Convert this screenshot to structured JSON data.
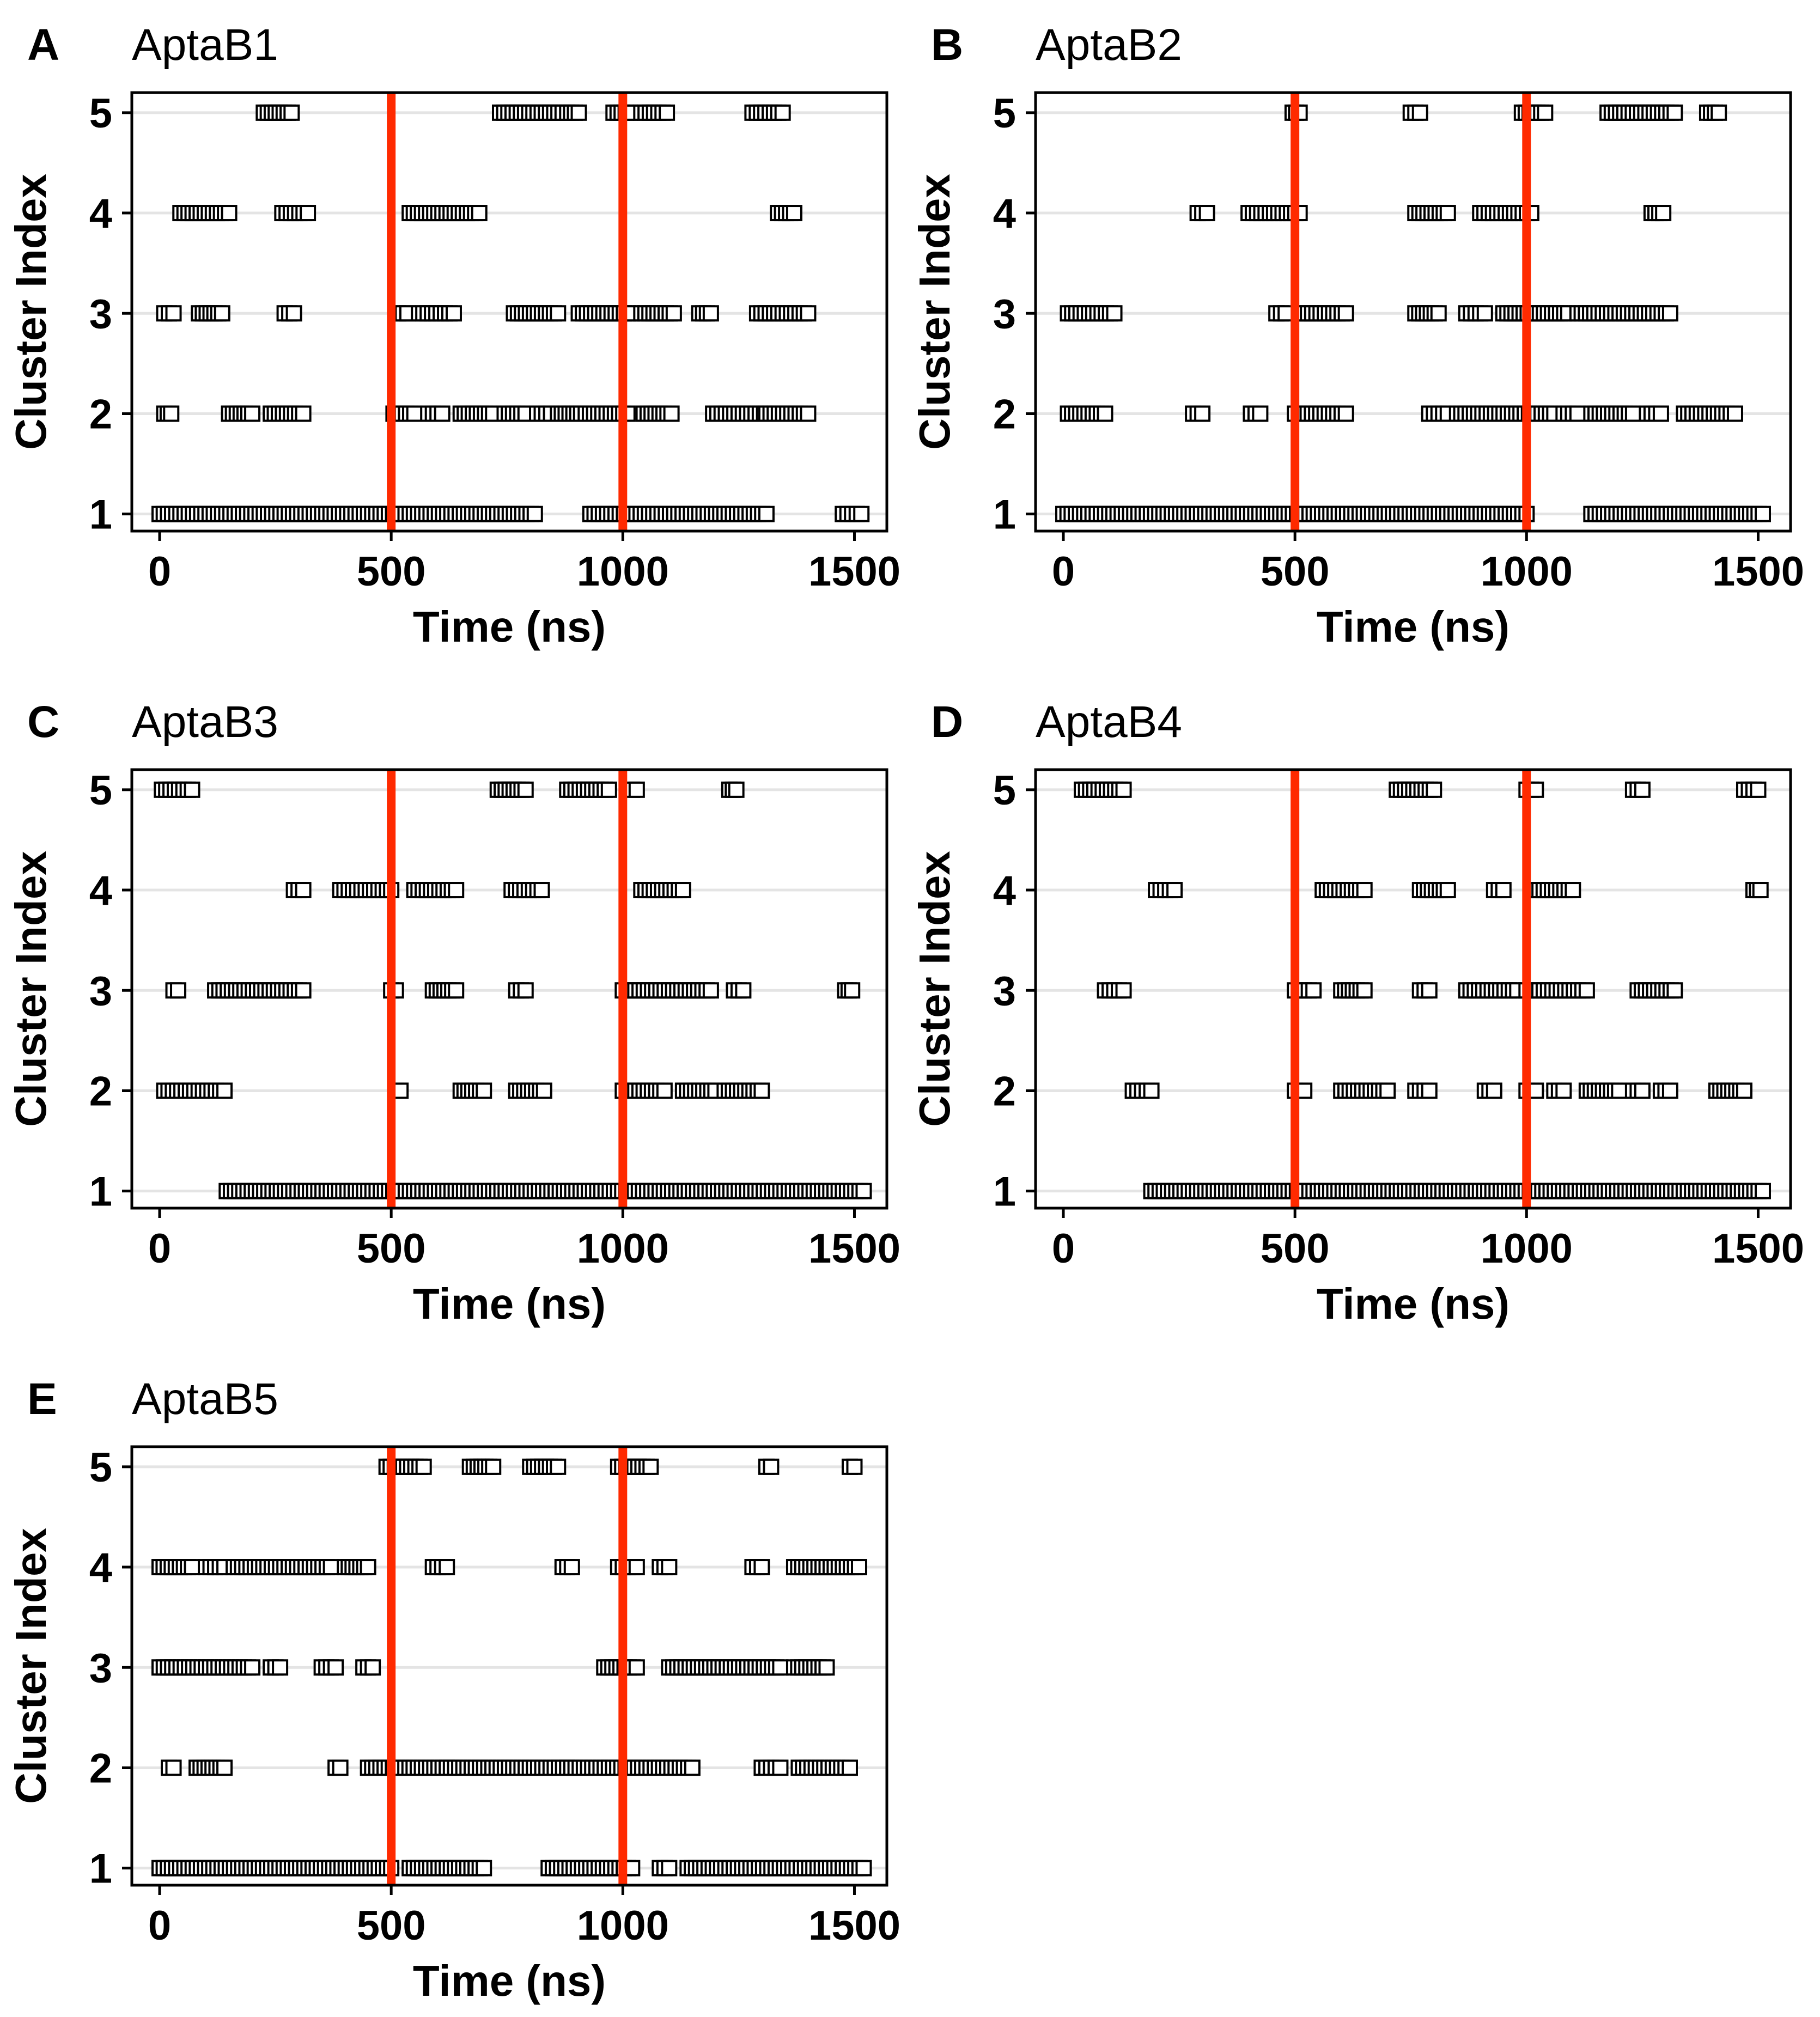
{
  "chart_data": [
    {
      "type": "scatter",
      "panel_label": "A",
      "title": "AptaB1",
      "xlabel": "Time (ns)",
      "ylabel": "Cluster Index",
      "xlim": [
        -60,
        1570
      ],
      "ylim": [
        0.83,
        5.2
      ],
      "xticks": [
        0,
        500,
        1000,
        1500
      ],
      "yticks": [
        1,
        2,
        3,
        4,
        5
      ],
      "marker": "open-square",
      "vlines": [
        500,
        1000
      ],
      "vline_color": "#ff2a00",
      "gridlines": "horizontal",
      "series": [
        {
          "name": "cluster 5",
          "y": 5,
          "runs": [
            [
              225,
              285
            ],
            [
              735,
              870
            ],
            [
              880,
              905
            ],
            [
              980,
              1015
            ],
            [
              1040,
              1095
            ],
            [
              1280,
              1345
            ]
          ]
        },
        {
          "name": "cluster 4",
          "y": 4,
          "runs": [
            [
              45,
              150
            ],
            [
              265,
              320
            ],
            [
              540,
              690
            ],
            [
              1335,
              1370
            ]
          ]
        },
        {
          "name": "cluster 3",
          "y": 3,
          "runs": [
            [
              10,
              30
            ],
            [
              85,
              135
            ],
            [
              270,
              290
            ],
            [
              515,
              535
            ],
            [
              560,
              635
            ],
            [
              765,
              860
            ],
            [
              905,
              1020
            ],
            [
              1040,
              1110
            ],
            [
              1165,
              1190
            ],
            [
              1290,
              1400
            ]
          ]
        },
        {
          "name": "cluster 2",
          "y": 2,
          "runs": [
            [
              10,
              25
            ],
            [
              150,
              200
            ],
            [
              240,
              310
            ],
            [
              505,
              550
            ],
            [
              580,
              610
            ],
            [
              650,
              720
            ],
            [
              745,
              790
            ],
            [
              815,
              845
            ],
            [
              860,
              910
            ],
            [
              920,
              1010
            ],
            [
              1045,
              1105
            ],
            [
              1195,
              1305
            ],
            [
              1310,
              1400
            ]
          ]
        },
        {
          "name": "cluster 1",
          "y": 1,
          "runs": [
            [
              0,
              810
            ],
            [
              930,
              1310
            ],
            [
              1475,
              1515
            ]
          ]
        }
      ]
    },
    {
      "type": "scatter",
      "panel_label": "B",
      "title": "AptaB2",
      "xlabel": "Time (ns)",
      "ylabel": "Cluster Index",
      "xlim": [
        -60,
        1570
      ],
      "ylim": [
        0.83,
        5.2
      ],
      "xticks": [
        0,
        500,
        1000,
        1500
      ],
      "yticks": [
        1,
        2,
        3,
        4,
        5
      ],
      "marker": "open-square",
      "vlines": [
        500,
        1000
      ],
      "vline_color": "#ff2a00",
      "gridlines": "horizontal",
      "series": [
        {
          "name": "cluster 5",
          "y": 5,
          "runs": [
            [
              495,
              510
            ],
            [
              750,
              770
            ],
            [
              990,
              1040
            ],
            [
              1175,
              1320
            ],
            [
              1390,
              1415
            ]
          ]
        },
        {
          "name": "cluster 4",
          "y": 4,
          "runs": [
            [
              290,
              310
            ],
            [
              400,
              510
            ],
            [
              760,
              830
            ],
            [
              900,
              1010
            ],
            [
              1270,
              1295
            ]
          ]
        },
        {
          "name": "cluster 3",
          "y": 3,
          "runs": [
            [
              10,
              110
            ],
            [
              460,
              480
            ],
            [
              510,
              610
            ],
            [
              760,
              810
            ],
            [
              870,
              910
            ],
            [
              950,
              1090
            ],
            [
              1110,
              1310
            ]
          ]
        },
        {
          "name": "cluster 2",
          "y": 2,
          "runs": [
            [
              10,
              90
            ],
            [
              280,
              300
            ],
            [
              405,
              425
            ],
            [
              500,
              610
            ],
            [
              790,
              830
            ],
            [
              850,
              1060
            ],
            [
              1080,
              1110
            ],
            [
              1140,
              1230
            ],
            [
              1260,
              1290
            ],
            [
              1340,
              1450
            ]
          ]
        },
        {
          "name": "cluster 1",
          "y": 1,
          "runs": [
            [
              0,
              1000
            ],
            [
              1140,
              1510
            ]
          ]
        }
      ]
    },
    {
      "type": "scatter",
      "panel_label": "C",
      "title": "AptaB3",
      "xlabel": "Time (ns)",
      "ylabel": "Cluster Index",
      "xlim": [
        -60,
        1570
      ],
      "ylim": [
        0.83,
        5.2
      ],
      "xticks": [
        0,
        500,
        1000,
        1500
      ],
      "yticks": [
        1,
        2,
        3,
        4,
        5
      ],
      "marker": "open-square",
      "vlines": [
        500,
        1000
      ],
      "vline_color": "#ff2a00",
      "gridlines": "horizontal",
      "series": [
        {
          "name": "cluster 5",
          "y": 5,
          "runs": [
            [
              5,
              70
            ],
            [
              730,
              790
            ],
            [
              880,
              970
            ],
            [
              1020,
              1030
            ],
            [
              1230,
              1245
            ]
          ]
        },
        {
          "name": "cluster 4",
          "y": 4,
          "runs": [
            [
              290,
              310
            ],
            [
              390,
              500
            ],
            [
              550,
              640
            ],
            [
              760,
              825
            ],
            [
              1040,
              1130
            ]
          ]
        },
        {
          "name": "cluster 3",
          "y": 3,
          "runs": [
            [
              30,
              40
            ],
            [
              120,
              310
            ],
            [
              500,
              510
            ],
            [
              590,
              640
            ],
            [
              770,
              790
            ],
            [
              1000,
              1190
            ],
            [
              1240,
              1260
            ],
            [
              1480,
              1495
            ]
          ]
        },
        {
          "name": "cluster 2",
          "y": 2,
          "runs": [
            [
              10,
              140
            ],
            [
              510,
              520
            ],
            [
              650,
              700
            ],
            [
              770,
              830
            ],
            [
              1000,
              1090
            ],
            [
              1130,
              1200
            ],
            [
              1220,
              1300
            ]
          ]
        },
        {
          "name": "cluster 1",
          "y": 1,
          "runs": [
            [
              145,
              1520
            ]
          ]
        }
      ]
    },
    {
      "type": "scatter",
      "panel_label": "D",
      "title": "AptaB4",
      "xlabel": "Time (ns)",
      "ylabel": "Cluster Index",
      "xlim": [
        -60,
        1570
      ],
      "ylim": [
        0.83,
        5.2
      ],
      "xticks": [
        0,
        500,
        1000,
        1500
      ],
      "yticks": [
        1,
        2,
        3,
        4,
        5
      ],
      "marker": "open-square",
      "vlines": [
        500,
        1000
      ],
      "vline_color": "#ff2a00",
      "gridlines": "horizontal",
      "series": [
        {
          "name": "cluster 5",
          "y": 5,
          "runs": [
            [
              40,
              130
            ],
            [
              720,
              800
            ],
            [
              1000,
              1020
            ],
            [
              1230,
              1250
            ],
            [
              1470,
              1500
            ]
          ]
        },
        {
          "name": "cluster 4",
          "y": 4,
          "runs": [
            [
              200,
              240
            ],
            [
              560,
              650
            ],
            [
              770,
              830
            ],
            [
              930,
              950
            ],
            [
              1010,
              1100
            ],
            [
              1490,
              1505
            ]
          ]
        },
        {
          "name": "cluster 3",
          "y": 3,
          "runs": [
            [
              90,
              130
            ],
            [
              500,
              540
            ],
            [
              600,
              650
            ],
            [
              770,
              790
            ],
            [
              870,
              980
            ],
            [
              1000,
              1130
            ],
            [
              1240,
              1320
            ]
          ]
        },
        {
          "name": "cluster 2",
          "y": 2,
          "runs": [
            [
              150,
              190
            ],
            [
              500,
              520
            ],
            [
              600,
              700
            ],
            [
              760,
              790
            ],
            [
              910,
              930
            ],
            [
              1000,
              1020
            ],
            [
              1060,
              1080
            ],
            [
              1130,
              1200
            ],
            [
              1230,
              1250
            ],
            [
              1290,
              1310
            ],
            [
              1410,
              1470
            ]
          ]
        },
        {
          "name": "cluster 1",
          "y": 1,
          "runs": [
            [
              190,
              1510
            ]
          ]
        }
      ]
    },
    {
      "type": "scatter",
      "panel_label": "E",
      "title": "AptaB5",
      "xlabel": "Time (ns)",
      "ylabel": "Cluster Index",
      "xlim": [
        -60,
        1570
      ],
      "ylim": [
        0.83,
        5.2
      ],
      "xticks": [
        0,
        500,
        1000,
        1500
      ],
      "yticks": [
        1,
        2,
        3,
        4,
        5
      ],
      "marker": "open-square",
      "vlines": [
        500,
        1000
      ],
      "vline_color": "#ff2a00",
      "gridlines": "horizontal",
      "series": [
        {
          "name": "cluster 5",
          "y": 5,
          "runs": [
            [
              490,
              570
            ],
            [
              670,
              720
            ],
            [
              800,
              860
            ],
            [
              990,
              1060
            ],
            [
              1310,
              1320
            ],
            [
              1490,
              1500
            ]
          ]
        },
        {
          "name": "cluster 4",
          "y": 4,
          "runs": [
            [
              0,
              70
            ],
            [
              100,
              140
            ],
            [
              160,
              370
            ],
            [
              400,
              450
            ],
            [
              590,
              620
            ],
            [
              870,
              890
            ],
            [
              990,
              1030
            ],
            [
              1080,
              1100
            ],
            [
              1280,
              1300
            ],
            [
              1370,
              1510
            ]
          ]
        },
        {
          "name": "cluster 3",
          "y": 3,
          "runs": [
            [
              0,
              200
            ],
            [
              240,
              260
            ],
            [
              350,
              380
            ],
            [
              440,
              460
            ],
            [
              960,
              1030
            ],
            [
              1100,
              1340
            ],
            [
              1370,
              1440
            ]
          ]
        },
        {
          "name": "cluster 2",
          "y": 2,
          "runs": [
            [
              20,
              30
            ],
            [
              80,
              140
            ],
            [
              380,
              390
            ],
            [
              450,
              620
            ],
            [
              620,
              880
            ],
            [
              880,
              1150
            ],
            [
              1300,
              1340
            ],
            [
              1380,
              1490
            ]
          ]
        },
        {
          "name": "cluster 1",
          "y": 1,
          "runs": [
            [
              0,
              500
            ],
            [
              540,
              700
            ],
            [
              840,
              1020
            ],
            [
              1080,
              1100
            ],
            [
              1140,
              1520
            ]
          ]
        }
      ]
    }
  ]
}
